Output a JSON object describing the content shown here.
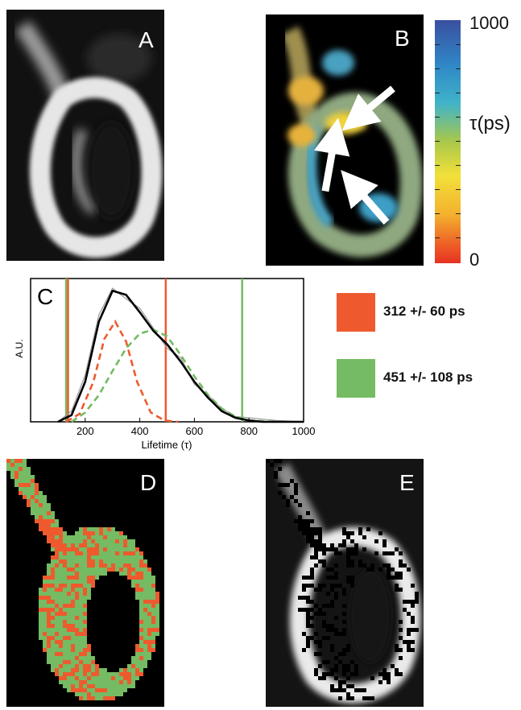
{
  "panels": {
    "a": {
      "letter": "A"
    },
    "b": {
      "letter": "B"
    },
    "c": {
      "letter": "C"
    },
    "d": {
      "letter": "D"
    },
    "e": {
      "letter": "E"
    }
  },
  "colorbar": {
    "max_label": "1000",
    "min_label": "0",
    "unit_label": "τ(ps)",
    "colors": [
      "#3a4fa0",
      "#2f86c6",
      "#3fb3c9",
      "#a9c84a",
      "#f2e03a",
      "#f3b12d",
      "#ee5a26",
      "#e63222"
    ]
  },
  "legend": {
    "orange": {
      "text": "312 +/- 60 ps",
      "color": "#ee5a2e"
    },
    "green": {
      "text": "451 +/- 108 ps",
      "color": "#74bb63"
    }
  },
  "chart_data": {
    "type": "line",
    "xlabel": "Lifetime (τ)",
    "ylabel": "A.U.",
    "xlim": [
      0,
      1000
    ],
    "x_ticks": [
      200,
      400,
      600,
      800,
      1000
    ],
    "grid": false,
    "series": [
      {
        "style": "solid",
        "color": "#000000",
        "x": [
          100,
          150,
          200,
          250,
          300,
          350,
          400,
          450,
          500,
          550,
          600,
          650,
          700,
          750,
          800,
          850,
          900,
          1000
        ],
        "y": [
          0,
          0.05,
          0.3,
          0.75,
          0.98,
          0.95,
          0.82,
          0.68,
          0.58,
          0.45,
          0.3,
          0.18,
          0.08,
          0.03,
          0.01,
          0,
          0,
          0
        ]
      },
      {
        "style": "noisy",
        "color": "#999999",
        "x": [
          100,
          150,
          200,
          250,
          300,
          350,
          400,
          450,
          500,
          550,
          600,
          650,
          700,
          750,
          800,
          850,
          900,
          1000
        ],
        "y": [
          0,
          0.08,
          0.35,
          0.8,
          1.0,
          0.92,
          0.85,
          0.7,
          0.55,
          0.48,
          0.28,
          0.2,
          0.1,
          0.04,
          0.03,
          0.02,
          0.01,
          0
        ]
      },
      {
        "style": "dashed",
        "color": "#ee5a2e",
        "x": [
          130,
          180,
          230,
          270,
          310,
          350,
          390,
          440,
          490,
          540
        ],
        "y": [
          0,
          0.06,
          0.3,
          0.62,
          0.75,
          0.6,
          0.3,
          0.07,
          0.01,
          0
        ]
      },
      {
        "style": "dashed",
        "color": "#74bb63",
        "x": [
          150,
          200,
          250,
          300,
          350,
          400,
          450,
          500,
          550,
          600,
          650,
          700,
          750,
          800,
          900
        ],
        "y": [
          0,
          0.07,
          0.2,
          0.38,
          0.55,
          0.66,
          0.69,
          0.64,
          0.5,
          0.34,
          0.2,
          0.1,
          0.04,
          0.01,
          0
        ]
      }
    ],
    "vertical_lines": [
      {
        "x": 130,
        "color": "#74bb63"
      },
      {
        "x": 137,
        "color": "#ee5a2e"
      },
      {
        "x": 495,
        "color": "#ee5a2e"
      },
      {
        "x": 775,
        "color": "#74bb63"
      }
    ]
  }
}
